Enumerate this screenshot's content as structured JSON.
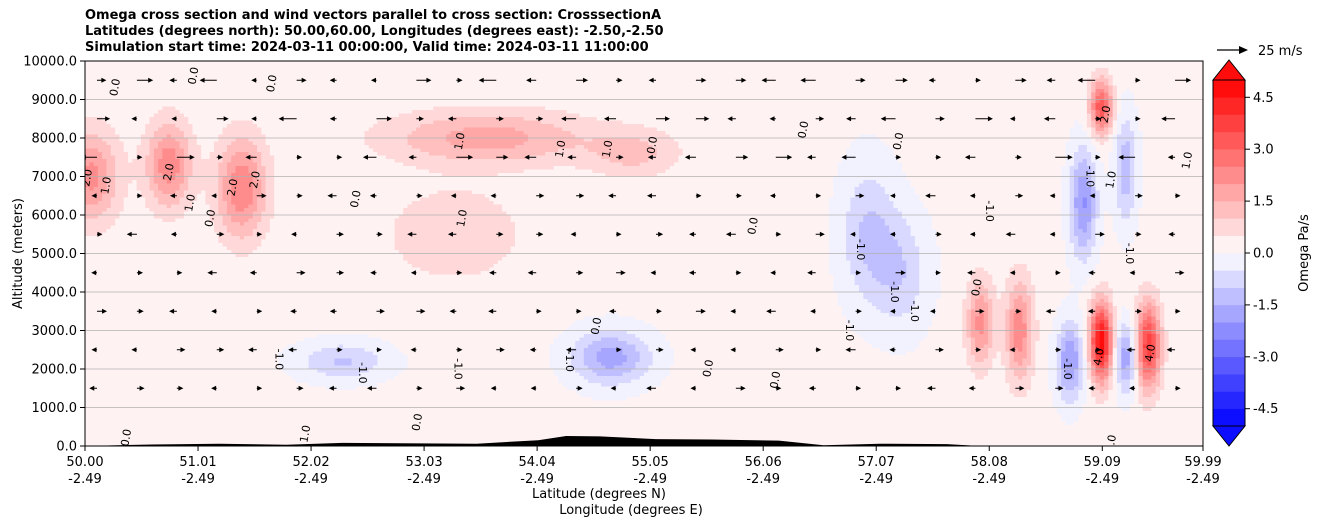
{
  "title": {
    "line1": "Omega cross section and wind vectors parallel to cross section: CrosssectionA",
    "line2": "Latitudes (degrees north): 50.00,60.00, Longitudes (degrees east): -2.50,-2.50",
    "line3": "Simulation start time: 2024-03-11 00:00:00, Valid time: 2024-03-11 11:00:00"
  },
  "chart_data": {
    "type": "heatmap",
    "subtype": "filled-contour cross section with wind vectors",
    "ylabel": "Altitude (meters)",
    "xlabel_line1": "Latitude (degrees N)",
    "xlabel_line2": "Longitude (degrees E)",
    "ylim": [
      0,
      10000
    ],
    "xlim": [
      50.0,
      59.99
    ],
    "y_ticks": [
      "0.0",
      "1000.0",
      "2000.0",
      "3000.0",
      "4000.0",
      "5000.0",
      "6000.0",
      "7000.0",
      "8000.0",
      "9000.0",
      "10000.0"
    ],
    "y_tick_values": [
      0,
      1000,
      2000,
      3000,
      4000,
      5000,
      6000,
      7000,
      8000,
      9000,
      10000
    ],
    "x_tick_values": [
      50.0,
      51.01,
      52.02,
      53.03,
      54.04,
      55.05,
      56.06,
      57.07,
      58.08,
      59.09,
      59.99
    ],
    "x_ticks_lat": [
      "50.00",
      "51.01",
      "52.02",
      "53.03",
      "54.04",
      "55.05",
      "56.06",
      "57.07",
      "58.08",
      "59.09",
      "59.99"
    ],
    "x_ticks_lon": [
      "-2.49",
      "-2.49",
      "-2.49",
      "-2.49",
      "-2.49",
      "-2.49",
      "-2.49",
      "-2.49",
      "-2.49",
      "-2.49",
      "-2.49"
    ],
    "grid": "horizontal",
    "colorbar": {
      "label": "Omega Pa/s",
      "min": -5.0,
      "max": 5.0,
      "levels": 21,
      "ticks": [
        "-4.5",
        "-3.0",
        "-1.5",
        "0.0",
        "1.5",
        "3.0",
        "4.5"
      ],
      "tick_values": [
        -4.5,
        -3.0,
        -1.5,
        0.0,
        1.5,
        3.0,
        4.5
      ],
      "extend": "both",
      "colormap": "bwr"
    },
    "vector_key": {
      "label": "25 m/s",
      "speed": 25
    },
    "omega_features": [
      {
        "lat": 50.05,
        "alt": 7000,
        "omega": 2.0,
        "w_lat": 0.25,
        "h_alt": 1200
      },
      {
        "lat": 50.75,
        "alt": 7300,
        "omega": 2.2,
        "w_lat": 0.2,
        "h_alt": 1100
      },
      {
        "lat": 51.4,
        "alt": 6700,
        "omega": 2.3,
        "w_lat": 0.22,
        "h_alt": 1300
      },
      {
        "lat": 53.6,
        "alt": 8000,
        "omega": 1.6,
        "w_lat": 0.9,
        "h_alt": 700
      },
      {
        "lat": 54.9,
        "alt": 7600,
        "omega": 1.0,
        "w_lat": 0.4,
        "h_alt": 600
      },
      {
        "lat": 53.3,
        "alt": 5500,
        "omega": 0.8,
        "w_lat": 0.6,
        "h_alt": 1200
      },
      {
        "lat": 52.3,
        "alt": 2200,
        "omega": -1.2,
        "w_lat": 0.4,
        "h_alt": 500
      },
      {
        "lat": 54.7,
        "alt": 2300,
        "omega": -1.9,
        "w_lat": 0.35,
        "h_alt": 700
      },
      {
        "lat": 57.0,
        "alt": 5500,
        "omega": -1.2,
        "w_lat": 0.25,
        "h_alt": 1800
      },
      {
        "lat": 57.3,
        "alt": 4500,
        "omega": -1.0,
        "w_lat": 0.25,
        "h_alt": 1500
      },
      {
        "lat": 58.0,
        "alt": 3200,
        "omega": 2.0,
        "w_lat": 0.12,
        "h_alt": 1100
      },
      {
        "lat": 58.35,
        "alt": 3000,
        "omega": 2.2,
        "w_lat": 0.12,
        "h_alt": 1300
      },
      {
        "lat": 58.8,
        "alt": 2200,
        "omega": -2.2,
        "w_lat": 0.12,
        "h_alt": 1000
      },
      {
        "lat": 58.92,
        "alt": 6300,
        "omega": -2.2,
        "w_lat": 0.12,
        "h_alt": 1400
      },
      {
        "lat": 59.08,
        "alt": 2700,
        "omega": 4.8,
        "w_lat": 0.1,
        "h_alt": 1000
      },
      {
        "lat": 59.08,
        "alt": 8800,
        "omega": 3.2,
        "w_lat": 0.1,
        "h_alt": 700
      },
      {
        "lat": 59.5,
        "alt": 2600,
        "omega": 3.7,
        "w_lat": 0.11,
        "h_alt": 1100
      },
      {
        "lat": 59.3,
        "alt": 2300,
        "omega": -2.0,
        "w_lat": 0.1,
        "h_alt": 900
      },
      {
        "lat": 59.3,
        "alt": 7200,
        "omega": -1.5,
        "w_lat": 0.1,
        "h_alt": 1400
      }
    ],
    "contour_labels": [
      {
        "text": "2.0",
        "lat": 50.05,
        "alt": 6950
      },
      {
        "text": "1.0",
        "lat": 50.22,
        "alt": 6750
      },
      {
        "text": "0.0",
        "lat": 50.3,
        "alt": 9300
      },
      {
        "text": "2.0",
        "lat": 50.78,
        "alt": 7100
      },
      {
        "text": "1.0",
        "lat": 50.97,
        "alt": 6300
      },
      {
        "text": "2.0",
        "lat": 51.35,
        "alt": 6700
      },
      {
        "text": "2.0",
        "lat": 51.55,
        "alt": 6900
      },
      {
        "text": "0.0",
        "lat": 51.15,
        "alt": 5900
      },
      {
        "text": "0.0",
        "lat": 51.7,
        "alt": 9400
      },
      {
        "text": "0.0",
        "lat": 51.0,
        "alt": 9600
      },
      {
        "text": "1.0",
        "lat": 53.38,
        "alt": 7900
      },
      {
        "text": "1.0",
        "lat": 54.28,
        "alt": 7700
      },
      {
        "text": "1.0",
        "lat": 54.7,
        "alt": 7700
      },
      {
        "text": "0.0",
        "lat": 55.1,
        "alt": 7800
      },
      {
        "text": "1.0",
        "lat": 53.4,
        "alt": 5900
      },
      {
        "text": "0.0",
        "lat": 52.45,
        "alt": 6400
      },
      {
        "text": "-1.0",
        "lat": 51.7,
        "alt": 2250
      },
      {
        "text": "-1.0",
        "lat": 52.45,
        "alt": 1900
      },
      {
        "text": "-1.0",
        "lat": 53.3,
        "alt": 2000
      },
      {
        "text": "-1.0",
        "lat": 54.3,
        "alt": 2200
      },
      {
        "text": "-1.0",
        "lat": 56.8,
        "alt": 3000
      },
      {
        "text": "-1.0",
        "lat": 57.38,
        "alt": 3500
      },
      {
        "text": "-1.0",
        "lat": 57.2,
        "alt": 4000
      },
      {
        "text": "-1.0",
        "lat": 56.9,
        "alt": 5100
      },
      {
        "text": "0.0",
        "lat": 56.0,
        "alt": 5700
      },
      {
        "text": "0.0",
        "lat": 56.45,
        "alt": 8200
      },
      {
        "text": "0.0",
        "lat": 57.3,
        "alt": 7900
      },
      {
        "text": "-1.0",
        "lat": 58.05,
        "alt": 6100
      },
      {
        "text": "-1.0",
        "lat": 58.75,
        "alt": 2000
      },
      {
        "text": "-1.0",
        "lat": 59.3,
        "alt": 5000
      },
      {
        "text": "-1.0",
        "lat": 58.95,
        "alt": 7000
      },
      {
        "text": "1.0",
        "lat": 59.2,
        "alt": 6900
      },
      {
        "text": "1.0",
        "lat": 59.88,
        "alt": 7400
      },
      {
        "text": "2.0",
        "lat": 59.15,
        "alt": 8600
      },
      {
        "text": "4.0",
        "lat": 59.09,
        "alt": 2300
      },
      {
        "text": "4.0",
        "lat": 59.55,
        "alt": 2400
      },
      {
        "text": "0.0",
        "lat": 59.2,
        "alt": 50
      },
      {
        "text": "0.0",
        "lat": 54.6,
        "alt": 3100
      },
      {
        "text": "0.0",
        "lat": 55.6,
        "alt": 2000
      },
      {
        "text": "0.0",
        "lat": 50.4,
        "alt": 200
      },
      {
        "text": "1.0",
        "lat": 52.0,
        "alt": 300
      },
      {
        "text": "0.0",
        "lat": 53.0,
        "alt": 600
      },
      {
        "text": "0.0",
        "lat": 56.2,
        "alt": 1700
      },
      {
        "text": "0.0",
        "lat": 58.0,
        "alt": 4100
      }
    ],
    "terrain": [
      {
        "lat": 50.0,
        "alt": 0
      },
      {
        "lat": 50.6,
        "alt": 40
      },
      {
        "lat": 51.2,
        "alt": 60
      },
      {
        "lat": 51.8,
        "alt": 30
      },
      {
        "lat": 52.3,
        "alt": 80
      },
      {
        "lat": 53.5,
        "alt": 60
      },
      {
        "lat": 54.05,
        "alt": 150
      },
      {
        "lat": 54.3,
        "alt": 260
      },
      {
        "lat": 54.6,
        "alt": 250
      },
      {
        "lat": 55.1,
        "alt": 180
      },
      {
        "lat": 55.6,
        "alt": 170
      },
      {
        "lat": 56.2,
        "alt": 140
      },
      {
        "lat": 56.6,
        "alt": 20
      },
      {
        "lat": 57.1,
        "alt": 60
      },
      {
        "lat": 57.7,
        "alt": 50
      },
      {
        "lat": 58.0,
        "alt": 0
      },
      {
        "lat": 59.99,
        "alt": 0
      }
    ]
  }
}
